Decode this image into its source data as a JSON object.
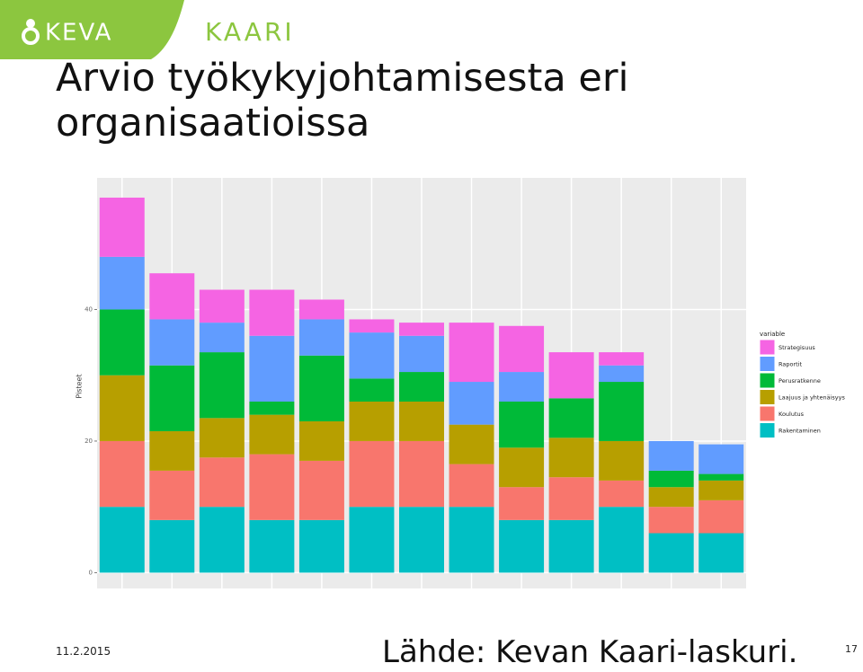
{
  "logo": {
    "brand": "KEVA",
    "product": "KAARI"
  },
  "title": "Arvio työkykyjohtamisesta eri organisaatioissa",
  "footer": {
    "date": "11.2.2015",
    "source": "Lähde: Kevan Kaari-laskuri.",
    "page": "17"
  },
  "chart_data": {
    "type": "stacked_bar",
    "y_label": "Pisteet",
    "legend_title": "variable",
    "legend_position": "right",
    "categories": [
      null,
      null,
      null,
      null,
      null,
      null,
      null,
      null,
      null,
      null,
      null,
      null,
      null
    ],
    "ylim": [
      -2.4,
      60
    ],
    "yticks": [
      0,
      20,
      40
    ],
    "grid": true,
    "series": [
      {
        "name": "Rakentaminen",
        "color": "#00bfc4",
        "values": [
          10,
          8,
          10,
          8,
          8,
          10,
          10,
          10,
          8,
          8,
          10,
          6,
          6
        ]
      },
      {
        "name": "Koulutus",
        "color": "#f8766d",
        "values": [
          10,
          7.5,
          7.5,
          10,
          9,
          10,
          10,
          6.5,
          5,
          6.5,
          4,
          4,
          5
        ]
      },
      {
        "name": "Laajuus ja yhtenäisyys",
        "color": "#b79f00",
        "values": [
          10,
          6,
          6,
          6,
          6,
          6,
          6,
          6,
          6,
          6,
          6,
          3,
          3
        ]
      },
      {
        "name": "Perusratkenne",
        "color": "#00ba38",
        "values": [
          10,
          10,
          10,
          2,
          10,
          3.5,
          4.5,
          0,
          7,
          6,
          9,
          2.5,
          1
        ]
      },
      {
        "name": "Raportit",
        "color": "#619cff",
        "values": [
          8,
          7,
          4.5,
          10,
          5.5,
          7,
          5.5,
          6.5,
          4.5,
          0,
          2.5,
          4.5,
          4.5
        ]
      },
      {
        "name": "Strategisuus",
        "color": "#f564e3",
        "values": [
          9,
          7,
          5,
          7,
          3,
          2,
          2,
          9,
          7,
          7,
          2,
          0,
          0
        ]
      }
    ]
  }
}
